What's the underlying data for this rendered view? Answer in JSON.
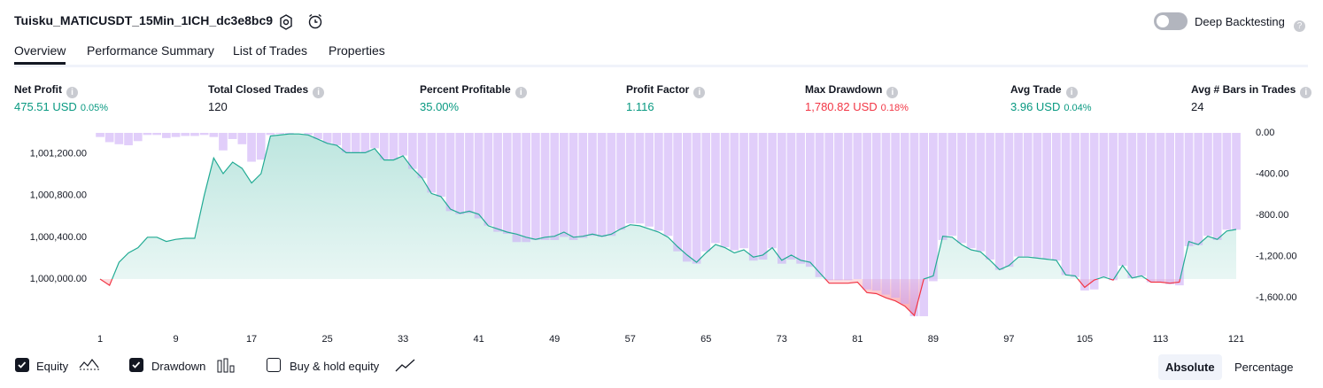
{
  "header": {
    "title": "Tuisku_MATICUSDT_15Min_1ICH_dc3e8bc9",
    "deep_backtesting": "Deep Backtesting"
  },
  "tabs": [
    "Overview",
    "Performance Summary",
    "List of Trades",
    "Properties"
  ],
  "stats": [
    {
      "label": "Net Profit",
      "value": "475.51 USD",
      "pct": "0.05%"
    },
    {
      "label": "Total Closed Trades",
      "value": "120"
    },
    {
      "label": "Percent Profitable",
      "value": "35.00%"
    },
    {
      "label": "Profit Factor",
      "value": "1.116"
    },
    {
      "label": "Max Drawdown",
      "value": "1,780.82 USD",
      "pct": "0.18%"
    },
    {
      "label": "Avg Trade",
      "value": "3.96 USD",
      "pct": "0.04%"
    },
    {
      "label": "Avg # Bars in Trades",
      "value": "24"
    }
  ],
  "chart_data": {
    "type": "equity-drawdown",
    "x": [
      1,
      2,
      3,
      4,
      5,
      6,
      7,
      8,
      9,
      10,
      11,
      12,
      13,
      14,
      15,
      16,
      17,
      18,
      19,
      20,
      21,
      22,
      23,
      24,
      25,
      26,
      27,
      28,
      29,
      30,
      31,
      32,
      33,
      34,
      35,
      36,
      37,
      38,
      39,
      40,
      41,
      42,
      43,
      44,
      45,
      46,
      47,
      48,
      49,
      50,
      51,
      52,
      53,
      54,
      55,
      56,
      57,
      58,
      59,
      60,
      61,
      62,
      63,
      64,
      65,
      66,
      67,
      68,
      69,
      70,
      71,
      72,
      73,
      74,
      75,
      76,
      77,
      78,
      79,
      80,
      81,
      82,
      83,
      84,
      85,
      86,
      87,
      88,
      89,
      90,
      91,
      92,
      93,
      94,
      95,
      96,
      97,
      98,
      99,
      100,
      101,
      102,
      103,
      104,
      105,
      106,
      107,
      108,
      109,
      110,
      111,
      112,
      113,
      114,
      115,
      116,
      117,
      118,
      119,
      120,
      121
    ],
    "xlim": [
      1,
      121
    ],
    "xticks": [
      1,
      9,
      17,
      25,
      33,
      41,
      49,
      57,
      65,
      73,
      81,
      89,
      97,
      105,
      113,
      121
    ],
    "ylim": [
      999618,
      1001400
    ],
    "yticks": [
      {
        "value": 1000000,
        "label": "1,000,000.00"
      },
      {
        "value": 1000400,
        "label": "1,000,400.00"
      },
      {
        "value": 1000800,
        "label": "1,000,800.00"
      },
      {
        "value": 1001200,
        "label": "1,001,200.00"
      }
    ],
    "y2lim": [
      -1806,
      0
    ],
    "y2ticks": [
      {
        "value": 0,
        "label": "0.00"
      },
      {
        "value": -400,
        "label": "-400.00"
      },
      {
        "value": -800,
        "label": "-800.00"
      },
      {
        "value": -1200,
        "label": "-1,200.00"
      },
      {
        "value": -1600,
        "label": "-1,600.00"
      }
    ],
    "baseline": 1000000,
    "series": [
      {
        "name": "Equity",
        "checked": true,
        "color": "#22ab94",
        "negative_color": "#f23645",
        "values": [
          1000000,
          999940,
          1000160,
          1000250,
          1000300,
          1000400,
          1000400,
          1000360,
          1000380,
          1000390,
          1000390,
          1000800,
          1001160,
          1001010,
          1001120,
          1001060,
          1000920,
          1001010,
          1001370,
          1001380,
          1001390,
          1001390,
          1001380,
          1001340,
          1001300,
          1001280,
          1001210,
          1001210,
          1001210,
          1001250,
          1001140,
          1001140,
          1001180,
          1001060,
          1000970,
          1000820,
          1000790,
          1000670,
          1000630,
          1000650,
          1000620,
          1000510,
          1000480,
          1000450,
          1000430,
          1000400,
          1000380,
          1000400,
          1000410,
          1000450,
          1000400,
          1000410,
          1000430,
          1000410,
          1000430,
          1000480,
          1000520,
          1000510,
          1000480,
          1000450,
          1000400,
          1000310,
          1000230,
          1000160,
          1000250,
          1000330,
          1000300,
          1000250,
          1000280,
          1000210,
          1000230,
          1000300,
          1000180,
          1000230,
          1000180,
          1000160,
          1000060,
          999960,
          999960,
          999960,
          999970,
          999870,
          999860,
          999820,
          999790,
          999740,
          999650,
          1000000,
          1000030,
          1000410,
          1000400,
          1000330,
          1000280,
          1000260,
          1000180,
          1000090,
          1000130,
          1000210,
          1000210,
          1000200,
          1000190,
          1000180,
          1000040,
          1000030,
          999920,
          999990,
          1000020,
          999990,
          1000130,
          1000010,
          1000030,
          999970,
          999970,
          999960,
          999970,
          1000360,
          1000330,
          1000410,
          1000380,
          1000460,
          1000475
        ]
      },
      {
        "name": "Drawdown",
        "checked": true,
        "axis": "y2",
        "color": "#c9a6f5",
        "values": [
          -40,
          -90,
          -110,
          -120,
          -80,
          -20,
          -20,
          -50,
          -40,
          -30,
          -30,
          -20,
          -40,
          -170,
          -60,
          -110,
          -280,
          -260,
          -20,
          -10,
          -10,
          0,
          -20,
          -60,
          -100,
          -120,
          -190,
          -190,
          -190,
          -150,
          -260,
          -260,
          -220,
          -350,
          -440,
          -580,
          -620,
          -760,
          -790,
          -780,
          -830,
          -900,
          -960,
          -980,
          -1060,
          -1060,
          -1040,
          -1040,
          -1040,
          -1010,
          -1040,
          -1020,
          -1000,
          -1010,
          -1000,
          -940,
          -880,
          -880,
          -910,
          -950,
          -1000,
          -1150,
          -1250,
          -1270,
          -1150,
          -1070,
          -1110,
          -1140,
          -1120,
          -1240,
          -1230,
          -1120,
          -1270,
          -1230,
          -1270,
          -1300,
          -1400,
          -1430,
          -1430,
          -1430,
          -1420,
          -1520,
          -1530,
          -1570,
          -1600,
          -1660,
          -1780,
          -1780,
          -1440,
          -1040,
          -1000,
          -1070,
          -1120,
          -1150,
          -1230,
          -1330,
          -1300,
          -1200,
          -1200,
          -1210,
          -1220,
          -1240,
          -1380,
          -1400,
          -1530,
          -1520,
          -1400,
          -1430,
          -1290,
          -1410,
          -1390,
          -1450,
          -1450,
          -1470,
          -1480,
          -1100,
          -1090,
          -1000,
          -1040,
          -940,
          -940
        ]
      }
    ],
    "other_series": [
      {
        "name": "Buy & hold equity",
        "checked": false
      }
    ],
    "modes": [
      "Absolute",
      "Percentage"
    ]
  }
}
